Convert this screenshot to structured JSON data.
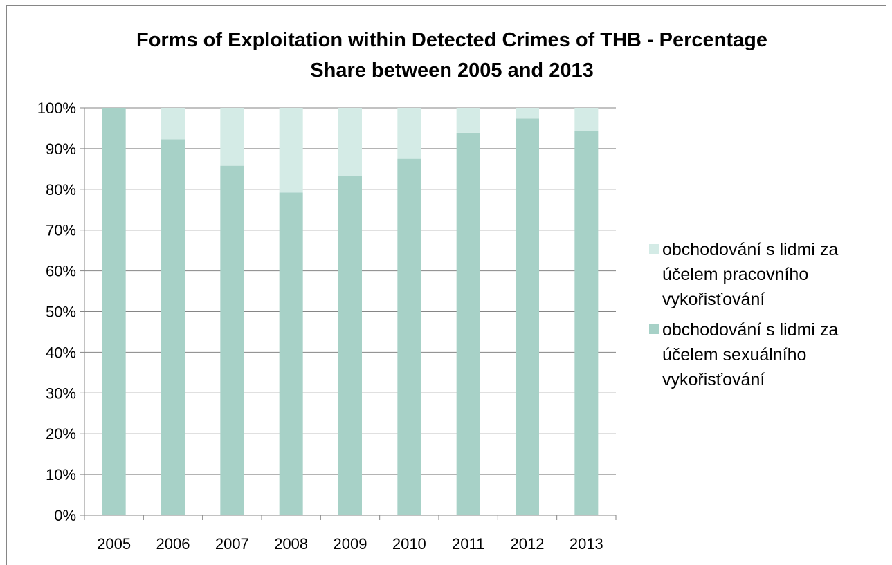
{
  "chart_data": {
    "type": "bar",
    "stacked": true,
    "title": "Forms of Exploitation within Detected Crimes of THB - Percentage Share between 2005 and 2013",
    "title_lines": [
      "Forms of Exploitation within Detected Crimes of THB - Percentage",
      "Share between 2005 and 2013"
    ],
    "categories": [
      "2005",
      "2006",
      "2007",
      "2008",
      "2009",
      "2010",
      "2011",
      "2012",
      "2013"
    ],
    "ylim": [
      0,
      100
    ],
    "yticks": [
      "0%",
      "10%",
      "20%",
      "30%",
      "40%",
      "50%",
      "60%",
      "70%",
      "80%",
      "90%",
      "100%"
    ],
    "grid": true,
    "legend_position": "right",
    "series": [
      {
        "name": "obchodování s lidmi za účelem sexuálního vykořisťování",
        "color": "#a7d1c7",
        "values": [
          100,
          92.3,
          85.8,
          79.2,
          83.4,
          87.5,
          93.9,
          97.4,
          94.3
        ]
      },
      {
        "name": "obchodování s lidmi za účelem pracovního vykořisťování",
        "color": "#d4ebe6",
        "values": [
          0,
          7.7,
          14.2,
          20.8,
          16.6,
          12.5,
          6.1,
          2.6,
          5.7
        ]
      }
    ]
  }
}
